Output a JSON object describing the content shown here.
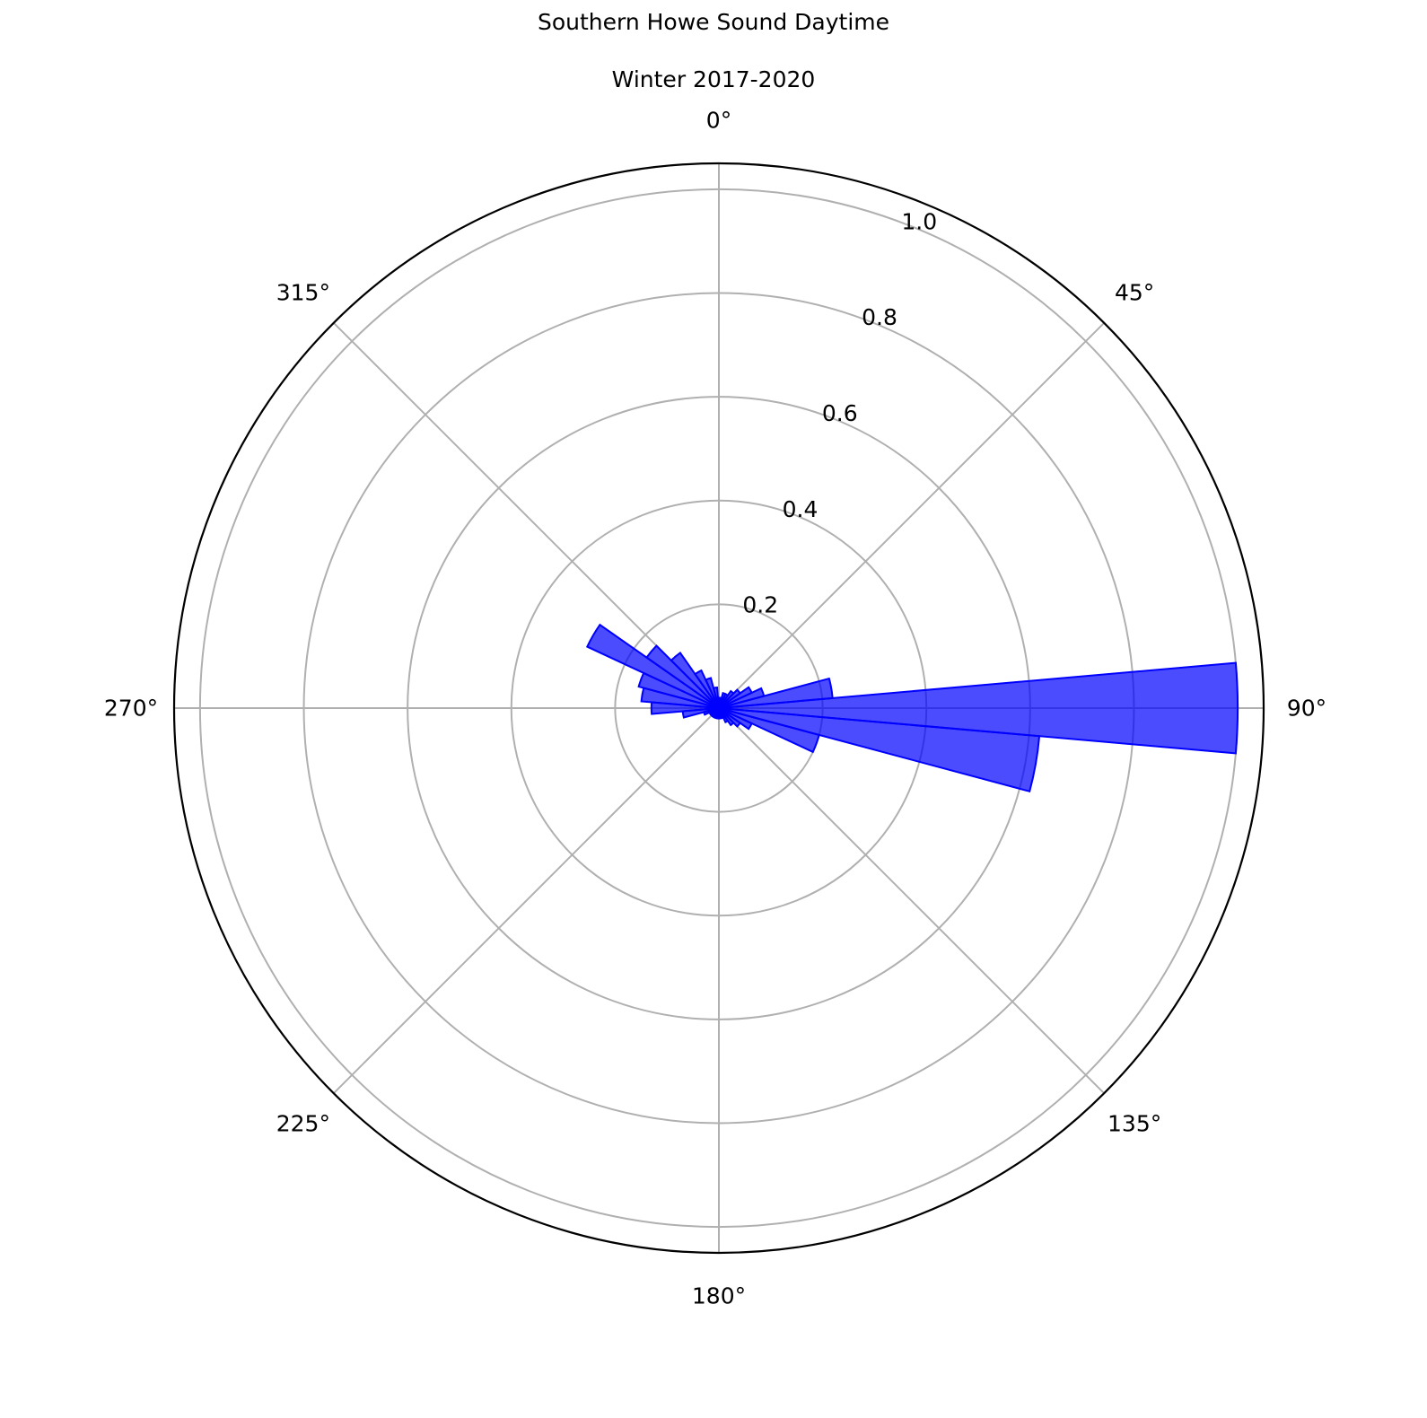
{
  "chart_data": {
    "type": "polar-bar",
    "title": "Southern Howe Sound Daytime",
    "subtitle": "Winter 2017-2020",
    "theta_zero": "N",
    "theta_direction": "clockwise",
    "angle_ticks": [
      "0°",
      "45°",
      "90°",
      "135°",
      "180°",
      "225°",
      "270°",
      "315°"
    ],
    "radial_ticks": [
      "0.2",
      "0.4",
      "0.6",
      "0.8",
      "1.0"
    ],
    "radial_tick_values": [
      0.2,
      0.4,
      0.6,
      0.8,
      1.0
    ],
    "rlim": [
      0,
      1.05
    ],
    "grid": true,
    "bin_width_deg": 10,
    "bars": [
      {
        "angle": 0,
        "value": 0.02
      },
      {
        "angle": 10,
        "value": 0.02
      },
      {
        "angle": 20,
        "value": 0.03
      },
      {
        "angle": 30,
        "value": 0.03
      },
      {
        "angle": 40,
        "value": 0.04
      },
      {
        "angle": 50,
        "value": 0.05
      },
      {
        "angle": 60,
        "value": 0.07
      },
      {
        "angle": 70,
        "value": 0.09
      },
      {
        "angle": 80,
        "value": 0.22
      },
      {
        "angle": 90,
        "value": 1.0
      },
      {
        "angle": 100,
        "value": 0.62
      },
      {
        "angle": 110,
        "value": 0.2
      },
      {
        "angle": 120,
        "value": 0.07
      },
      {
        "angle": 130,
        "value": 0.05
      },
      {
        "angle": 140,
        "value": 0.04
      },
      {
        "angle": 150,
        "value": 0.03
      },
      {
        "angle": 160,
        "value": 0.02
      },
      {
        "angle": 170,
        "value": 0.02
      },
      {
        "angle": 180,
        "value": 0.02
      },
      {
        "angle": 190,
        "value": 0.02
      },
      {
        "angle": 200,
        "value": 0.02
      },
      {
        "angle": 210,
        "value": 0.02
      },
      {
        "angle": 220,
        "value": 0.02
      },
      {
        "angle": 230,
        "value": 0.02
      },
      {
        "angle": 240,
        "value": 0.02
      },
      {
        "angle": 250,
        "value": 0.03
      },
      {
        "angle": 260,
        "value": 0.07
      },
      {
        "angle": 270,
        "value": 0.13
      },
      {
        "angle": 280,
        "value": 0.15
      },
      {
        "angle": 290,
        "value": 0.16
      },
      {
        "angle": 300,
        "value": 0.28
      },
      {
        "angle": 310,
        "value": 0.17
      },
      {
        "angle": 320,
        "value": 0.13
      },
      {
        "angle": 330,
        "value": 0.08
      },
      {
        "angle": 340,
        "value": 0.06
      },
      {
        "angle": 350,
        "value": 0.04
      }
    ],
    "colors": {
      "bar_fill": "#0000ff",
      "bar_fill_opacity": 0.7,
      "bar_edge": "#0000ff",
      "grid": "#b0b0b0",
      "frame": "#000000"
    }
  }
}
